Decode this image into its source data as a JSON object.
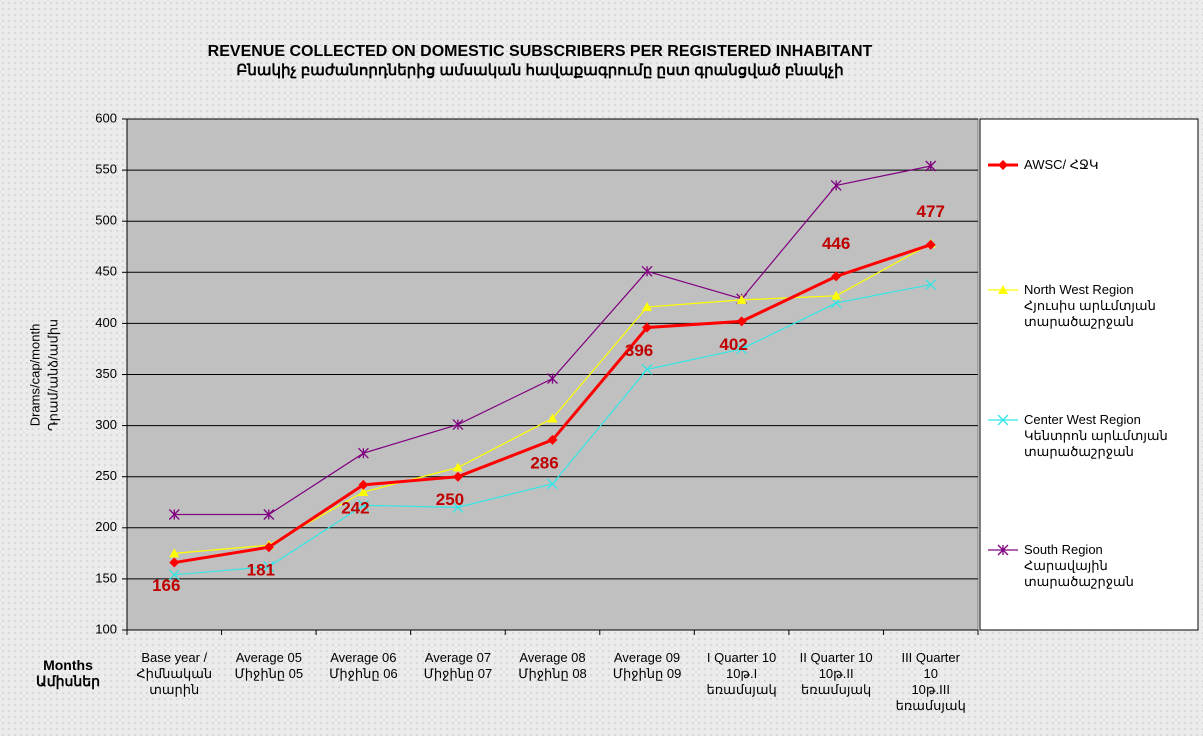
{
  "chart_data": {
    "type": "line",
    "title": "REVENUE COLLECTED ON DOMESTIC SUBSCRIBERS PER REGISTERED INHABITANT",
    "subtitle": "Բնակիչ բաժանորդներից ամսական հավաքագրումը ըստ գրանցված բնակչի",
    "y_label": "Drams/cap/month",
    "y_label_2": "Դրամ/անձ/ամիս",
    "x_label": "Months\nԱմիսներ",
    "categories": [
      "Base year /\nՀիմնական\nտարին",
      "Average 05\nՄիջինը 05",
      "Average 06\nՄիջինը 06",
      "Average 07\nՄիջինը 07",
      "Average 08\nՄիջինը 08",
      "Average 09\nՄիջինը 09",
      "I Quarter 10\n10թ.I\nեռամսյակ",
      "II Quarter 10\n10թ.II\nեռամսյակ",
      "III Quarter\n10\n10թ.III\nեռամսյակ"
    ],
    "series": [
      {
        "name": "AWSC/ ՀՋԿ",
        "color": "#ff0000",
        "marker": "diamond",
        "line_width": 3,
        "values": [
          166,
          181,
          242,
          250,
          286,
          396,
          402,
          446,
          477
        ],
        "data_labels": true
      },
      {
        "name": "North West Region\nՀյուսիս արևմտյան\nտարածաշրջան",
        "color": "#ffff00",
        "marker": "triangle",
        "line_width": 1.2,
        "values": [
          175,
          183,
          235,
          259,
          307,
          416,
          423,
          427,
          478
        ]
      },
      {
        "name": "Center West Region\nԿենտրոն արևմտյան\nտարածաշրջան",
        "color": "#33e6e6",
        "marker": "x",
        "line_width": 1.2,
        "values": [
          154,
          162,
          222,
          220,
          243,
          355,
          375,
          420,
          438
        ]
      },
      {
        "name": "South Region\nՀարավային\nտարածաշրջան",
        "color": "#800080",
        "marker": "star",
        "line_width": 1.2,
        "values": [
          213,
          213,
          273,
          301,
          346,
          451,
          424,
          535,
          554
        ]
      }
    ],
    "ylim": [
      100,
      600
    ],
    "yticks": [
      100,
      150,
      200,
      250,
      300,
      350,
      400,
      450,
      500,
      550,
      600
    ],
    "grid": true,
    "legend": "right"
  }
}
